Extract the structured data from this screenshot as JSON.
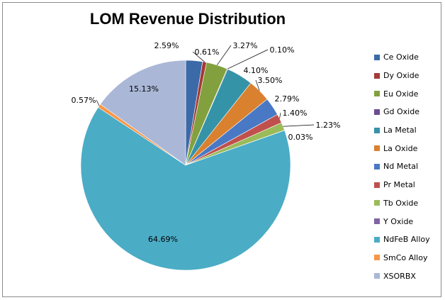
{
  "chart_data": {
    "type": "pie",
    "title": "LOM Revenue Distribution",
    "legend_position": "right",
    "slices": [
      {
        "name": "Ce Oxide",
        "value": 2.59,
        "label": "2.59%",
        "color": "#3c6aa8"
      },
      {
        "name": "Dy Oxide",
        "value": 0.61,
        "label": "0.61%",
        "color": "#a53a36"
      },
      {
        "name": "Eu Oxide",
        "value": 3.27,
        "label": "3.27%",
        "color": "#82a13e"
      },
      {
        "name": "Gd Oxide",
        "value": 0.1,
        "label": "0.10%",
        "color": "#6c4d91"
      },
      {
        "name": "La Metal",
        "value": 4.1,
        "label": "4.10%",
        "color": "#3593a8"
      },
      {
        "name": "La Oxide",
        "value": 3.5,
        "label": "3.50%",
        "color": "#d9812f"
      },
      {
        "name": "Nd Metal",
        "value": 2.79,
        "label": "2.79%",
        "color": "#4978c4"
      },
      {
        "name": "Pr Metal",
        "value": 1.4,
        "label": "1.40%",
        "color": "#c0504d"
      },
      {
        "name": "Tb Oxide",
        "value": 1.23,
        "label": "1.23%",
        "color": "#9bbb59"
      },
      {
        "name": "Y Oxide",
        "value": 0.03,
        "label": "0.03%",
        "color": "#8064a2"
      },
      {
        "name": "NdFeB Alloy",
        "value": 64.69,
        "label": "64.69%",
        "color": "#4bacc6"
      },
      {
        "name": "SmCo Alloy",
        "value": 0.57,
        "label": "0.57%",
        "color": "#f79646"
      },
      {
        "name": "XSORBX",
        "value": 15.13,
        "label": "15.13%",
        "color": "#aab7d6"
      }
    ]
  }
}
